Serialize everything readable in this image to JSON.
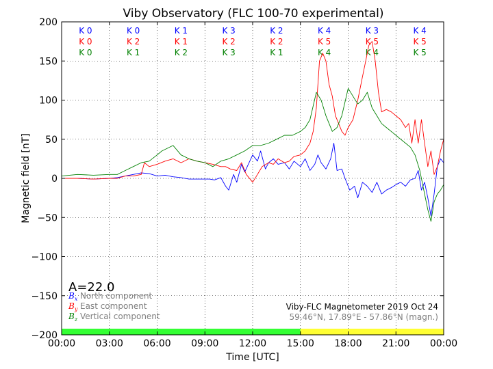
{
  "chart_data": {
    "type": "line",
    "title": "Viby Observatory (FLC 100-70 experimental)",
    "xlabel": "Time [UTC]",
    "ylabel": "Magnetic field [nT]",
    "xlim": [
      0,
      24
    ],
    "ylim": [
      -200,
      200
    ],
    "grid": true,
    "x_ticks": [
      0,
      3,
      6,
      9,
      12,
      15,
      18,
      21,
      24
    ],
    "x_tick_labels": [
      "00:00",
      "03:00",
      "06:00",
      "09:00",
      "12:00",
      "15:00",
      "18:00",
      "21:00",
      "00:00"
    ],
    "y_ticks": [
      200,
      150,
      100,
      50,
      0,
      -50,
      -100,
      -150,
      -200
    ],
    "y_tick_labels": [
      "200",
      "150",
      "100",
      "50",
      "0",
      "−50",
      "−100",
      "−150",
      "−200"
    ],
    "a_index": "A=22.0",
    "legend_placement": "lower-left",
    "legend": [
      {
        "symbol": "Bx",
        "label": "North component",
        "color": "#0000ff"
      },
      {
        "symbol": "By",
        "label": "East component",
        "color": "#ff0000"
      },
      {
        "symbol": "Bz",
        "label": "Vertical component",
        "color": "#008000"
      }
    ],
    "info_line1": "Viby-FLC Magnetometer 2019 Oct 24",
    "info_line2": "59.46°N, 17.89°E - 57.86°N (magn.)",
    "k_index": {
      "row_colors": [
        "#0000ff",
        "#ff0000",
        "#008000"
      ],
      "rows": [
        [
          "K 0",
          "K 0",
          "K 1",
          "K 3",
          "K 2",
          "K 4",
          "K 3",
          "K 4"
        ],
        [
          "K 0",
          "K 2",
          "K 1",
          "K 2",
          "K 2",
          "K 5",
          "K 5",
          "K 5"
        ],
        [
          "K 0",
          "K 1",
          "K 2",
          "K 3",
          "K 1",
          "K 4",
          "K 4",
          "K 5"
        ]
      ]
    },
    "activity_bar": [
      {
        "from": 0,
        "to": 15,
        "color": "#33ff33"
      },
      {
        "from": 15,
        "to": 24,
        "color": "#ffff33"
      }
    ],
    "series": [
      {
        "name": "Bx",
        "color": "#0000ff",
        "x": [
          0,
          1,
          2,
          3,
          3.5,
          4,
          4.5,
          5,
          5.5,
          6,
          6.5,
          7,
          7.5,
          8,
          8.5,
          9,
          9.3,
          9.6,
          10,
          10.3,
          10.5,
          10.8,
          11,
          11.3,
          11.5,
          12,
          12.3,
          12.5,
          12.8,
          13,
          13.3,
          13.6,
          14,
          14.3,
          14.6,
          15,
          15.3,
          15.6,
          15.9,
          16.1,
          16.3,
          16.6,
          16.9,
          17.1,
          17.3,
          17.6,
          17.8,
          18.1,
          18.4,
          18.6,
          18.9,
          19.2,
          19.5,
          19.8,
          20.1,
          20.4,
          20.7,
          21,
          21.3,
          21.6,
          21.9,
          22.2,
          22.4,
          22.6,
          22.8,
          23,
          23.2,
          23.4,
          23.6,
          23.8,
          24
        ],
        "y": [
          0,
          0,
          -1,
          0,
          1,
          3,
          5,
          7,
          6,
          3,
          4,
          2,
          1,
          -1,
          -1,
          -1,
          -1,
          -2,
          1,
          -10,
          -15,
          5,
          -5,
          18,
          8,
          30,
          22,
          35,
          12,
          20,
          25,
          18,
          20,
          12,
          22,
          15,
          25,
          10,
          18,
          30,
          20,
          12,
          25,
          45,
          10,
          12,
          0,
          -15,
          -10,
          -25,
          -5,
          -10,
          -18,
          -5,
          -20,
          -15,
          -12,
          -8,
          -5,
          -10,
          -2,
          0,
          10,
          -15,
          -5,
          -25,
          -48,
          -20,
          15,
          25,
          20
        ]
      },
      {
        "name": "By",
        "color": "#ff0000",
        "x": [
          0,
          1,
          2,
          3,
          3.5,
          4,
          4.5,
          5,
          5.2,
          5.5,
          6,
          6.5,
          7,
          7.5,
          8,
          8.5,
          9,
          9.5,
          10,
          10.3,
          10.6,
          11,
          11.3,
          11.6,
          12,
          12.3,
          12.6,
          13,
          13.3,
          13.6,
          14,
          14.3,
          14.6,
          15,
          15.3,
          15.6,
          15.8,
          16,
          16.2,
          16.4,
          16.6,
          16.8,
          17,
          17.2,
          17.4,
          17.6,
          17.8,
          18,
          18.3,
          18.6,
          18.9,
          19.1,
          19.3,
          19.5,
          19.7,
          19.9,
          20.1,
          20.4,
          20.7,
          21,
          21.3,
          21.6,
          21.8,
          22,
          22.2,
          22.4,
          22.6,
          22.8,
          23,
          23.2,
          23.4,
          23.6,
          23.8,
          24
        ],
        "y": [
          0,
          0,
          -1,
          0,
          0,
          3,
          3,
          5,
          20,
          15,
          18,
          22,
          25,
          20,
          25,
          22,
          20,
          18,
          15,
          15,
          12,
          10,
          20,
          5,
          -5,
          5,
          15,
          20,
          18,
          25,
          20,
          22,
          28,
          30,
          35,
          45,
          60,
          90,
          150,
          160,
          150,
          120,
          105,
          80,
          70,
          60,
          55,
          65,
          75,
          100,
          130,
          150,
          170,
          175,
          150,
          110,
          85,
          88,
          85,
          80,
          75,
          65,
          70,
          45,
          75,
          45,
          75,
          45,
          15,
          35,
          5,
          15,
          35,
          50
        ]
      },
      {
        "name": "Bz",
        "color": "#008000",
        "x": [
          0,
          1,
          2,
          3,
          3.5,
          4,
          4.5,
          5,
          5.5,
          6,
          6.3,
          6.6,
          7,
          7.5,
          8,
          8.5,
          9,
          9.5,
          10,
          10.5,
          11,
          11.5,
          12,
          12.5,
          13,
          13.5,
          14,
          14.5,
          15,
          15.3,
          15.6,
          16,
          16.3,
          16.6,
          17,
          17.3,
          17.6,
          18,
          18.3,
          18.6,
          18.9,
          19.2,
          19.5,
          19.8,
          20.1,
          20.4,
          20.7,
          21,
          21.3,
          21.6,
          21.9,
          22.2,
          22.5,
          22.8,
          23,
          23.2,
          23.4,
          23.6,
          23.8,
          24
        ],
        "y": [
          3,
          5,
          4,
          5,
          5,
          10,
          15,
          20,
          22,
          30,
          35,
          38,
          42,
          30,
          25,
          22,
          20,
          15,
          22,
          25,
          30,
          35,
          42,
          42,
          45,
          50,
          55,
          55,
          60,
          65,
          75,
          110,
          100,
          80,
          60,
          65,
          80,
          115,
          105,
          95,
          100,
          110,
          90,
          80,
          70,
          65,
          60,
          55,
          50,
          45,
          40,
          30,
          10,
          -20,
          -40,
          -55,
          -30,
          -20,
          -15,
          -8
        ]
      }
    ]
  }
}
